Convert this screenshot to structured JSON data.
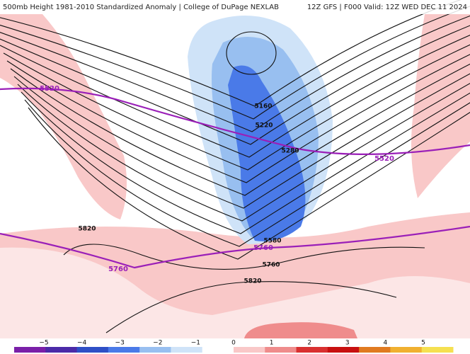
{
  "header": {
    "title": "500mb Height 1981-2010 Standardized Anomaly | College of DuPage NEXLAB",
    "run": "12Z GFS | F000 Valid: 12Z WED DEC 11 2024"
  },
  "contour_labels": [
    {
      "label": "5520",
      "kind": "climo"
    },
    {
      "label": "5520",
      "kind": "climo"
    },
    {
      "label": "5160",
      "kind": "height"
    },
    {
      "label": "5220",
      "kind": "height"
    },
    {
      "label": "5280",
      "kind": "height"
    },
    {
      "label": "5580",
      "kind": "height"
    },
    {
      "label": "5760",
      "kind": "climo"
    },
    {
      "label": "5760",
      "kind": "climo"
    },
    {
      "label": "5760",
      "kind": "height"
    },
    {
      "label": "5820",
      "kind": "height"
    },
    {
      "label": "5820",
      "kind": "height"
    }
  ],
  "colorbar": {
    "ticks": [
      "−5",
      "−4",
      "−3",
      "−2",
      "−1",
      "0",
      "1",
      "2",
      "3",
      "4",
      "5"
    ]
  }
}
